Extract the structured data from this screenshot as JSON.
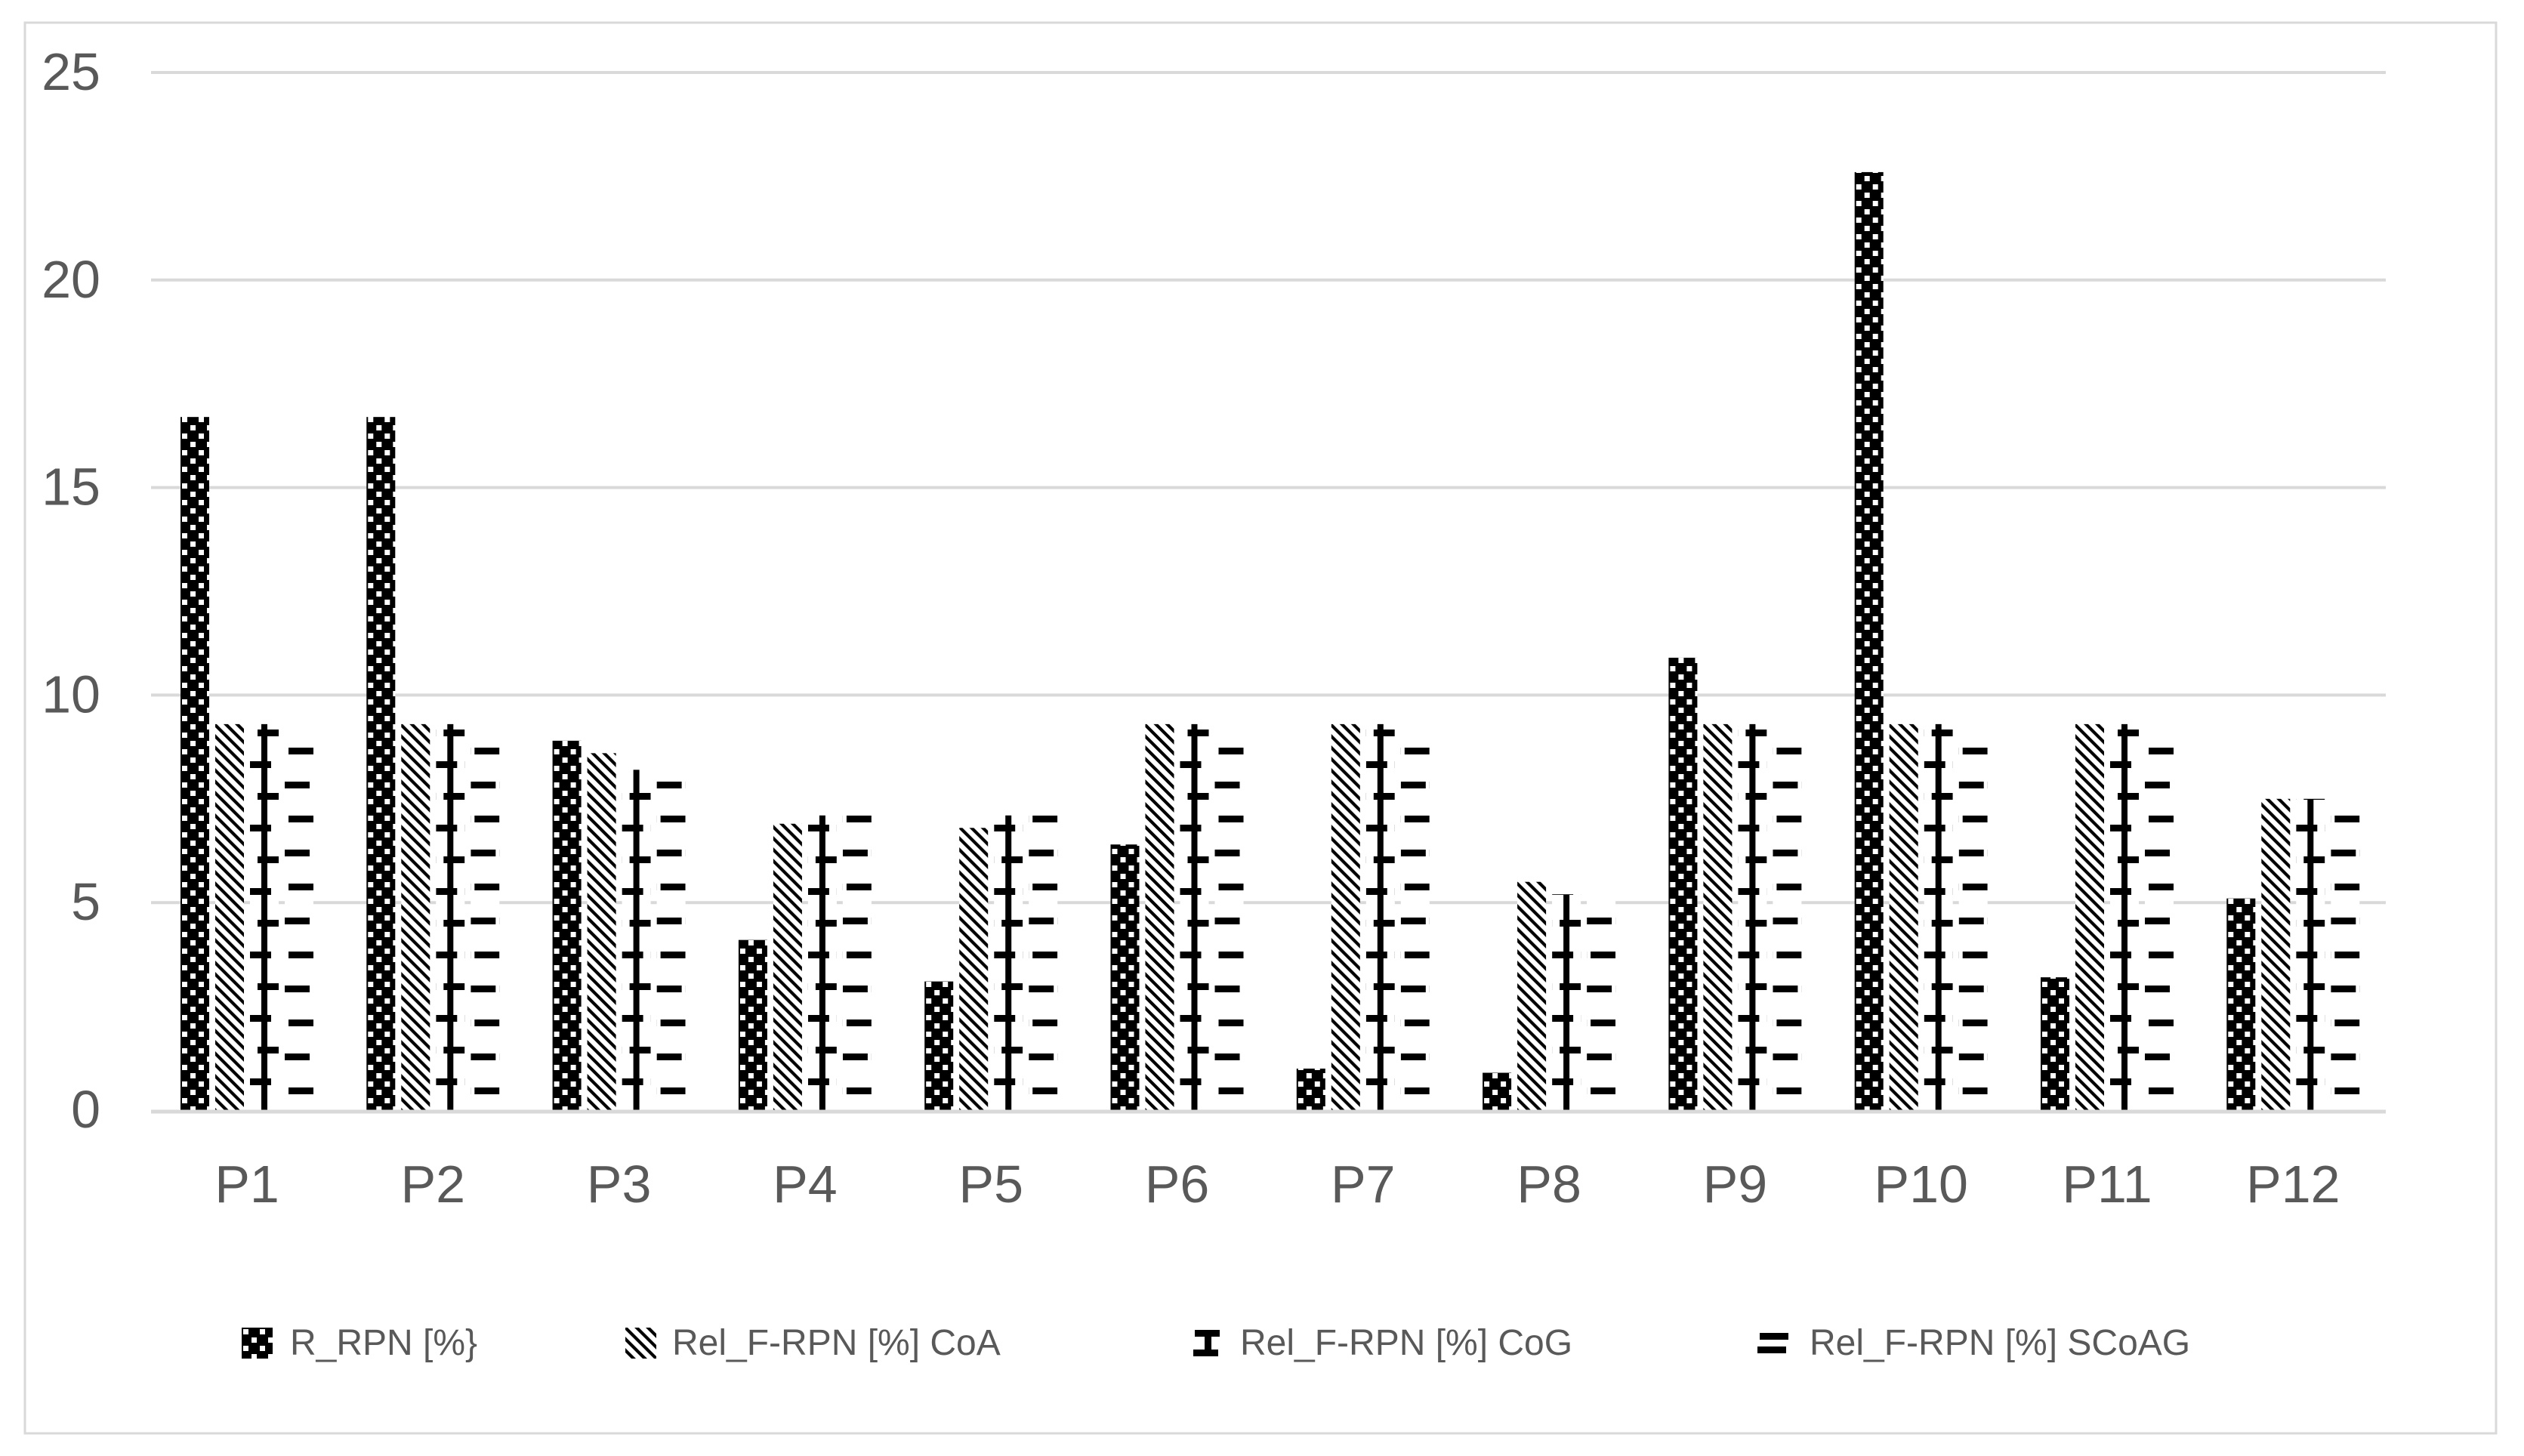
{
  "chart_data": {
    "type": "bar",
    "title": "",
    "xlabel": "",
    "ylabel": "",
    "categories": [
      "P1",
      "P2",
      "P3",
      "P4",
      "P5",
      "P6",
      "P7",
      "P8",
      "P9",
      "P10",
      "P11",
      "P12"
    ],
    "series": [
      {
        "name": "R_RPN [%}",
        "pattern": "checker",
        "values": [
          16.7,
          16.7,
          8.9,
          4.1,
          3.1,
          6.4,
          1.0,
          0.9,
          10.9,
          22.6,
          3.2,
          5.1
        ]
      },
      {
        "name": "Rel_F-RPN [%] CoA",
        "pattern": "diagonal",
        "values": [
          9.3,
          9.3,
          8.6,
          6.9,
          6.8,
          9.3,
          9.3,
          5.5,
          9.3,
          9.3,
          9.3,
          7.5
        ]
      },
      {
        "name": "Rel_F-RPN [%] CoG",
        "pattern": "meander",
        "values": [
          9.3,
          9.3,
          8.2,
          7.1,
          7.1,
          9.3,
          9.3,
          5.2,
          9.3,
          9.3,
          9.3,
          7.5
        ]
      },
      {
        "name": "Rel_F-RPN [%] SCoAG",
        "pattern": "hdash",
        "values": [
          9.0,
          9.0,
          8.5,
          7.1,
          7.1,
          9.0,
          9.0,
          5.2,
          9.0,
          9.0,
          9.0,
          7.5
        ]
      }
    ],
    "y_axis": {
      "min": 0,
      "max": 25,
      "step": 5,
      "tick_labels": [
        "0",
        "5",
        "10",
        "15",
        "20",
        "25"
      ]
    },
    "legend_position": "bottom",
    "grid": true,
    "colors": {
      "ink": "#000000",
      "grid": "#d9d9d9",
      "border": "#d9d9d9",
      "label": "#595959",
      "legend_text": "#595959",
      "background": "#ffffff"
    }
  }
}
